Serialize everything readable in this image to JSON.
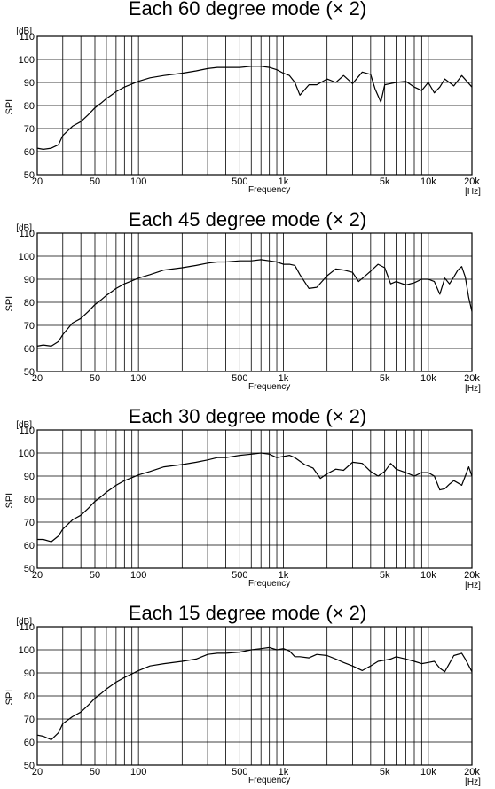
{
  "chart_data": [
    {
      "type": "line",
      "title": "Each 60 degree mode (× 2)",
      "xlabel": "Frequency",
      "ylabel": "SPL",
      "y_unit": "[dB]",
      "x_unit": "[Hz]",
      "xscale": "log",
      "xlim": [
        20,
        20000
      ],
      "ylim": [
        50,
        110
      ],
      "grid": true,
      "x_ticks": [
        {
          "v": 20,
          "label": "20"
        },
        {
          "v": 50,
          "label": "50"
        },
        {
          "v": 100,
          "label": "100"
        },
        {
          "v": 500,
          "label": "500"
        },
        {
          "v": 1000,
          "label": "1k"
        },
        {
          "v": 5000,
          "label": "5k"
        },
        {
          "v": 10000,
          "label": "10k"
        },
        {
          "v": 20000,
          "label": "20k"
        }
      ],
      "y_ticks": [
        {
          "v": 50,
          "label": "50"
        },
        {
          "v": 60,
          "label": "60"
        },
        {
          "v": 70,
          "label": "70"
        },
        {
          "v": 80,
          "label": "80"
        },
        {
          "v": 90,
          "label": "90"
        },
        {
          "v": 100,
          "label": "100"
        },
        {
          "v": 110,
          "label": "110"
        }
      ],
      "series": [
        {
          "x": [
            20,
            22,
            25,
            28,
            30,
            35,
            40,
            45,
            50,
            55,
            60,
            70,
            80,
            100,
            120,
            150,
            200,
            250,
            300,
            350,
            400,
            500,
            600,
            700,
            800,
            900,
            1000,
            1100,
            1200,
            1300,
            1500,
            1700,
            2000,
            2300,
            2600,
            3000,
            3500,
            4000,
            4300,
            4700,
            5000,
            5500,
            6000,
            7000,
            8000,
            9000,
            10000,
            11000,
            12000,
            13000,
            15000,
            17000,
            20000
          ],
          "y": [
            61.5,
            61,
            61.5,
            63,
            67,
            71,
            73,
            76,
            79,
            81,
            83,
            86,
            88,
            90.5,
            92,
            93,
            94,
            95,
            96,
            96.5,
            96.5,
            96.5,
            97,
            97,
            96.5,
            95.5,
            94,
            93,
            90,
            84.5,
            89,
            89,
            91.5,
            90,
            93,
            89.5,
            94.5,
            93.5,
            87,
            81.5,
            89,
            89.5,
            90,
            90.5,
            88,
            86.5,
            90,
            85.5,
            88,
            91.5,
            88.5,
            93,
            88
          ]
        }
      ]
    },
    {
      "type": "line",
      "title": "Each 45 degree mode (× 2)",
      "xlabel": "Frequency",
      "ylabel": "SPL",
      "y_unit": "[dB]",
      "x_unit": "[Hz]",
      "xscale": "log",
      "xlim": [
        20,
        20000
      ],
      "ylim": [
        50,
        110
      ],
      "grid": true,
      "x_ticks": [
        {
          "v": 20,
          "label": "20"
        },
        {
          "v": 50,
          "label": "50"
        },
        {
          "v": 100,
          "label": "100"
        },
        {
          "v": 500,
          "label": "500"
        },
        {
          "v": 1000,
          "label": "1k"
        },
        {
          "v": 5000,
          "label": "5k"
        },
        {
          "v": 10000,
          "label": "10k"
        },
        {
          "v": 20000,
          "label": "20k"
        }
      ],
      "y_ticks": [
        {
          "v": 50,
          "label": "50"
        },
        {
          "v": 60,
          "label": "60"
        },
        {
          "v": 70,
          "label": "70"
        },
        {
          "v": 80,
          "label": "80"
        },
        {
          "v": 90,
          "label": "90"
        },
        {
          "v": 100,
          "label": "100"
        },
        {
          "v": 110,
          "label": "110"
        }
      ],
      "series": [
        {
          "x": [
            20,
            22,
            25,
            28,
            30,
            35,
            40,
            45,
            50,
            55,
            60,
            70,
            80,
            100,
            120,
            150,
            200,
            250,
            300,
            350,
            400,
            500,
            600,
            700,
            800,
            900,
            1000,
            1100,
            1200,
            1300,
            1500,
            1700,
            2000,
            2300,
            2600,
            3000,
            3300,
            3600,
            4000,
            4500,
            5000,
            5500,
            6000,
            7000,
            8000,
            9000,
            10000,
            11000,
            12000,
            13000,
            14000,
            15000,
            16000,
            17000,
            18000,
            19000,
            20000
          ],
          "y": [
            61,
            61.5,
            61,
            63,
            66,
            71,
            73,
            76,
            79,
            81,
            83,
            86,
            88,
            90.5,
            92,
            94,
            95,
            96,
            97,
            97.5,
            97.5,
            98,
            98,
            98.5,
            98,
            97.5,
            96.5,
            96.5,
            96,
            92,
            86,
            86.5,
            91.5,
            94.5,
            94,
            93,
            89,
            91,
            93.5,
            96.5,
            95,
            88,
            89,
            87.5,
            88.5,
            90,
            90,
            89,
            83.5,
            90.5,
            88,
            91,
            94,
            95.5,
            91,
            82,
            76
          ]
        }
      ]
    },
    {
      "type": "line",
      "title": "Each 30 degree mode (× 2)",
      "xlabel": "Frequency",
      "ylabel": "SPL",
      "y_unit": "[dB]",
      "x_unit": "[Hz]",
      "xscale": "log",
      "xlim": [
        20,
        20000
      ],
      "ylim": [
        50,
        110
      ],
      "grid": true,
      "x_ticks": [
        {
          "v": 20,
          "label": "20"
        },
        {
          "v": 50,
          "label": "50"
        },
        {
          "v": 100,
          "label": "100"
        },
        {
          "v": 500,
          "label": "500"
        },
        {
          "v": 1000,
          "label": "1k"
        },
        {
          "v": 5000,
          "label": "5k"
        },
        {
          "v": 10000,
          "label": "10k"
        },
        {
          "v": 20000,
          "label": "20k"
        }
      ],
      "y_ticks": [
        {
          "v": 50,
          "label": "50"
        },
        {
          "v": 60,
          "label": "60"
        },
        {
          "v": 70,
          "label": "70"
        },
        {
          "v": 80,
          "label": "80"
        },
        {
          "v": 90,
          "label": "90"
        },
        {
          "v": 100,
          "label": "100"
        },
        {
          "v": 110,
          "label": "110"
        }
      ],
      "series": [
        {
          "x": [
            20,
            22,
            25,
            28,
            30,
            35,
            40,
            45,
            50,
            55,
            60,
            70,
            80,
            100,
            120,
            150,
            200,
            250,
            300,
            350,
            400,
            500,
            600,
            700,
            800,
            900,
            1000,
            1100,
            1200,
            1400,
            1600,
            1800,
            2000,
            2300,
            2600,
            3000,
            3500,
            4000,
            4500,
            5000,
            5500,
            6000,
            7000,
            8000,
            9000,
            10000,
            11000,
            12000,
            13000,
            14000,
            15000,
            16000,
            17000,
            18000,
            19000,
            20000
          ],
          "y": [
            62.5,
            62.5,
            61.5,
            64,
            67,
            71,
            73,
            76,
            79,
            81,
            83,
            86,
            88,
            90.5,
            92,
            94,
            95,
            96,
            97,
            98,
            98,
            99,
            99.5,
            100,
            99.5,
            98,
            98.5,
            99,
            98,
            95,
            93.5,
            89,
            91,
            93,
            92.5,
            96,
            95.5,
            92,
            90,
            92,
            95.5,
            93,
            91.5,
            90,
            91.5,
            91.5,
            90,
            84,
            84.5,
            86.5,
            88,
            87,
            86,
            90,
            94,
            90
          ]
        }
      ]
    },
    {
      "type": "line",
      "title": "Each 15 degree mode (× 2)",
      "xlabel": "Frequency",
      "ylabel": "SPL",
      "y_unit": "[dB]",
      "x_unit": "[Hz]",
      "xscale": "log",
      "xlim": [
        20,
        20000
      ],
      "ylim": [
        50,
        110
      ],
      "grid": true,
      "x_ticks": [
        {
          "v": 20,
          "label": "20"
        },
        {
          "v": 50,
          "label": "50"
        },
        {
          "v": 100,
          "label": "100"
        },
        {
          "v": 500,
          "label": "500"
        },
        {
          "v": 1000,
          "label": "1k"
        },
        {
          "v": 5000,
          "label": "5k"
        },
        {
          "v": 10000,
          "label": "10k"
        },
        {
          "v": 20000,
          "label": "20k"
        }
      ],
      "y_ticks": [
        {
          "v": 50,
          "label": "50"
        },
        {
          "v": 60,
          "label": "60"
        },
        {
          "v": 70,
          "label": "70"
        },
        {
          "v": 80,
          "label": "80"
        },
        {
          "v": 90,
          "label": "90"
        },
        {
          "v": 100,
          "label": "100"
        },
        {
          "v": 110,
          "label": "110"
        }
      ],
      "series": [
        {
          "x": [
            20,
            22,
            25,
            28,
            30,
            35,
            40,
            45,
            50,
            55,
            60,
            70,
            80,
            100,
            120,
            150,
            200,
            250,
            300,
            350,
            400,
            500,
            600,
            700,
            800,
            900,
            1000,
            1100,
            1200,
            1300,
            1500,
            1700,
            2000,
            2300,
            2600,
            3000,
            3500,
            4000,
            4500,
            5000,
            5500,
            6000,
            7000,
            8000,
            9000,
            10000,
            11000,
            12000,
            13000,
            15000,
            17000,
            18000,
            20000
          ],
          "y": [
            63,
            62.5,
            61,
            64,
            68,
            71,
            73,
            76,
            79,
            81,
            83,
            86,
            88,
            91,
            93,
            94,
            95,
            96,
            98,
            98.5,
            98.5,
            99,
            100,
            100.5,
            101,
            100,
            100.5,
            99.5,
            97,
            97,
            96.5,
            98,
            97.5,
            96,
            94.5,
            93,
            91,
            93,
            95,
            95.5,
            96,
            97,
            96,
            95,
            94,
            94.5,
            95,
            92,
            90.5,
            97.5,
            98.5,
            96,
            90.5
          ]
        }
      ]
    }
  ]
}
